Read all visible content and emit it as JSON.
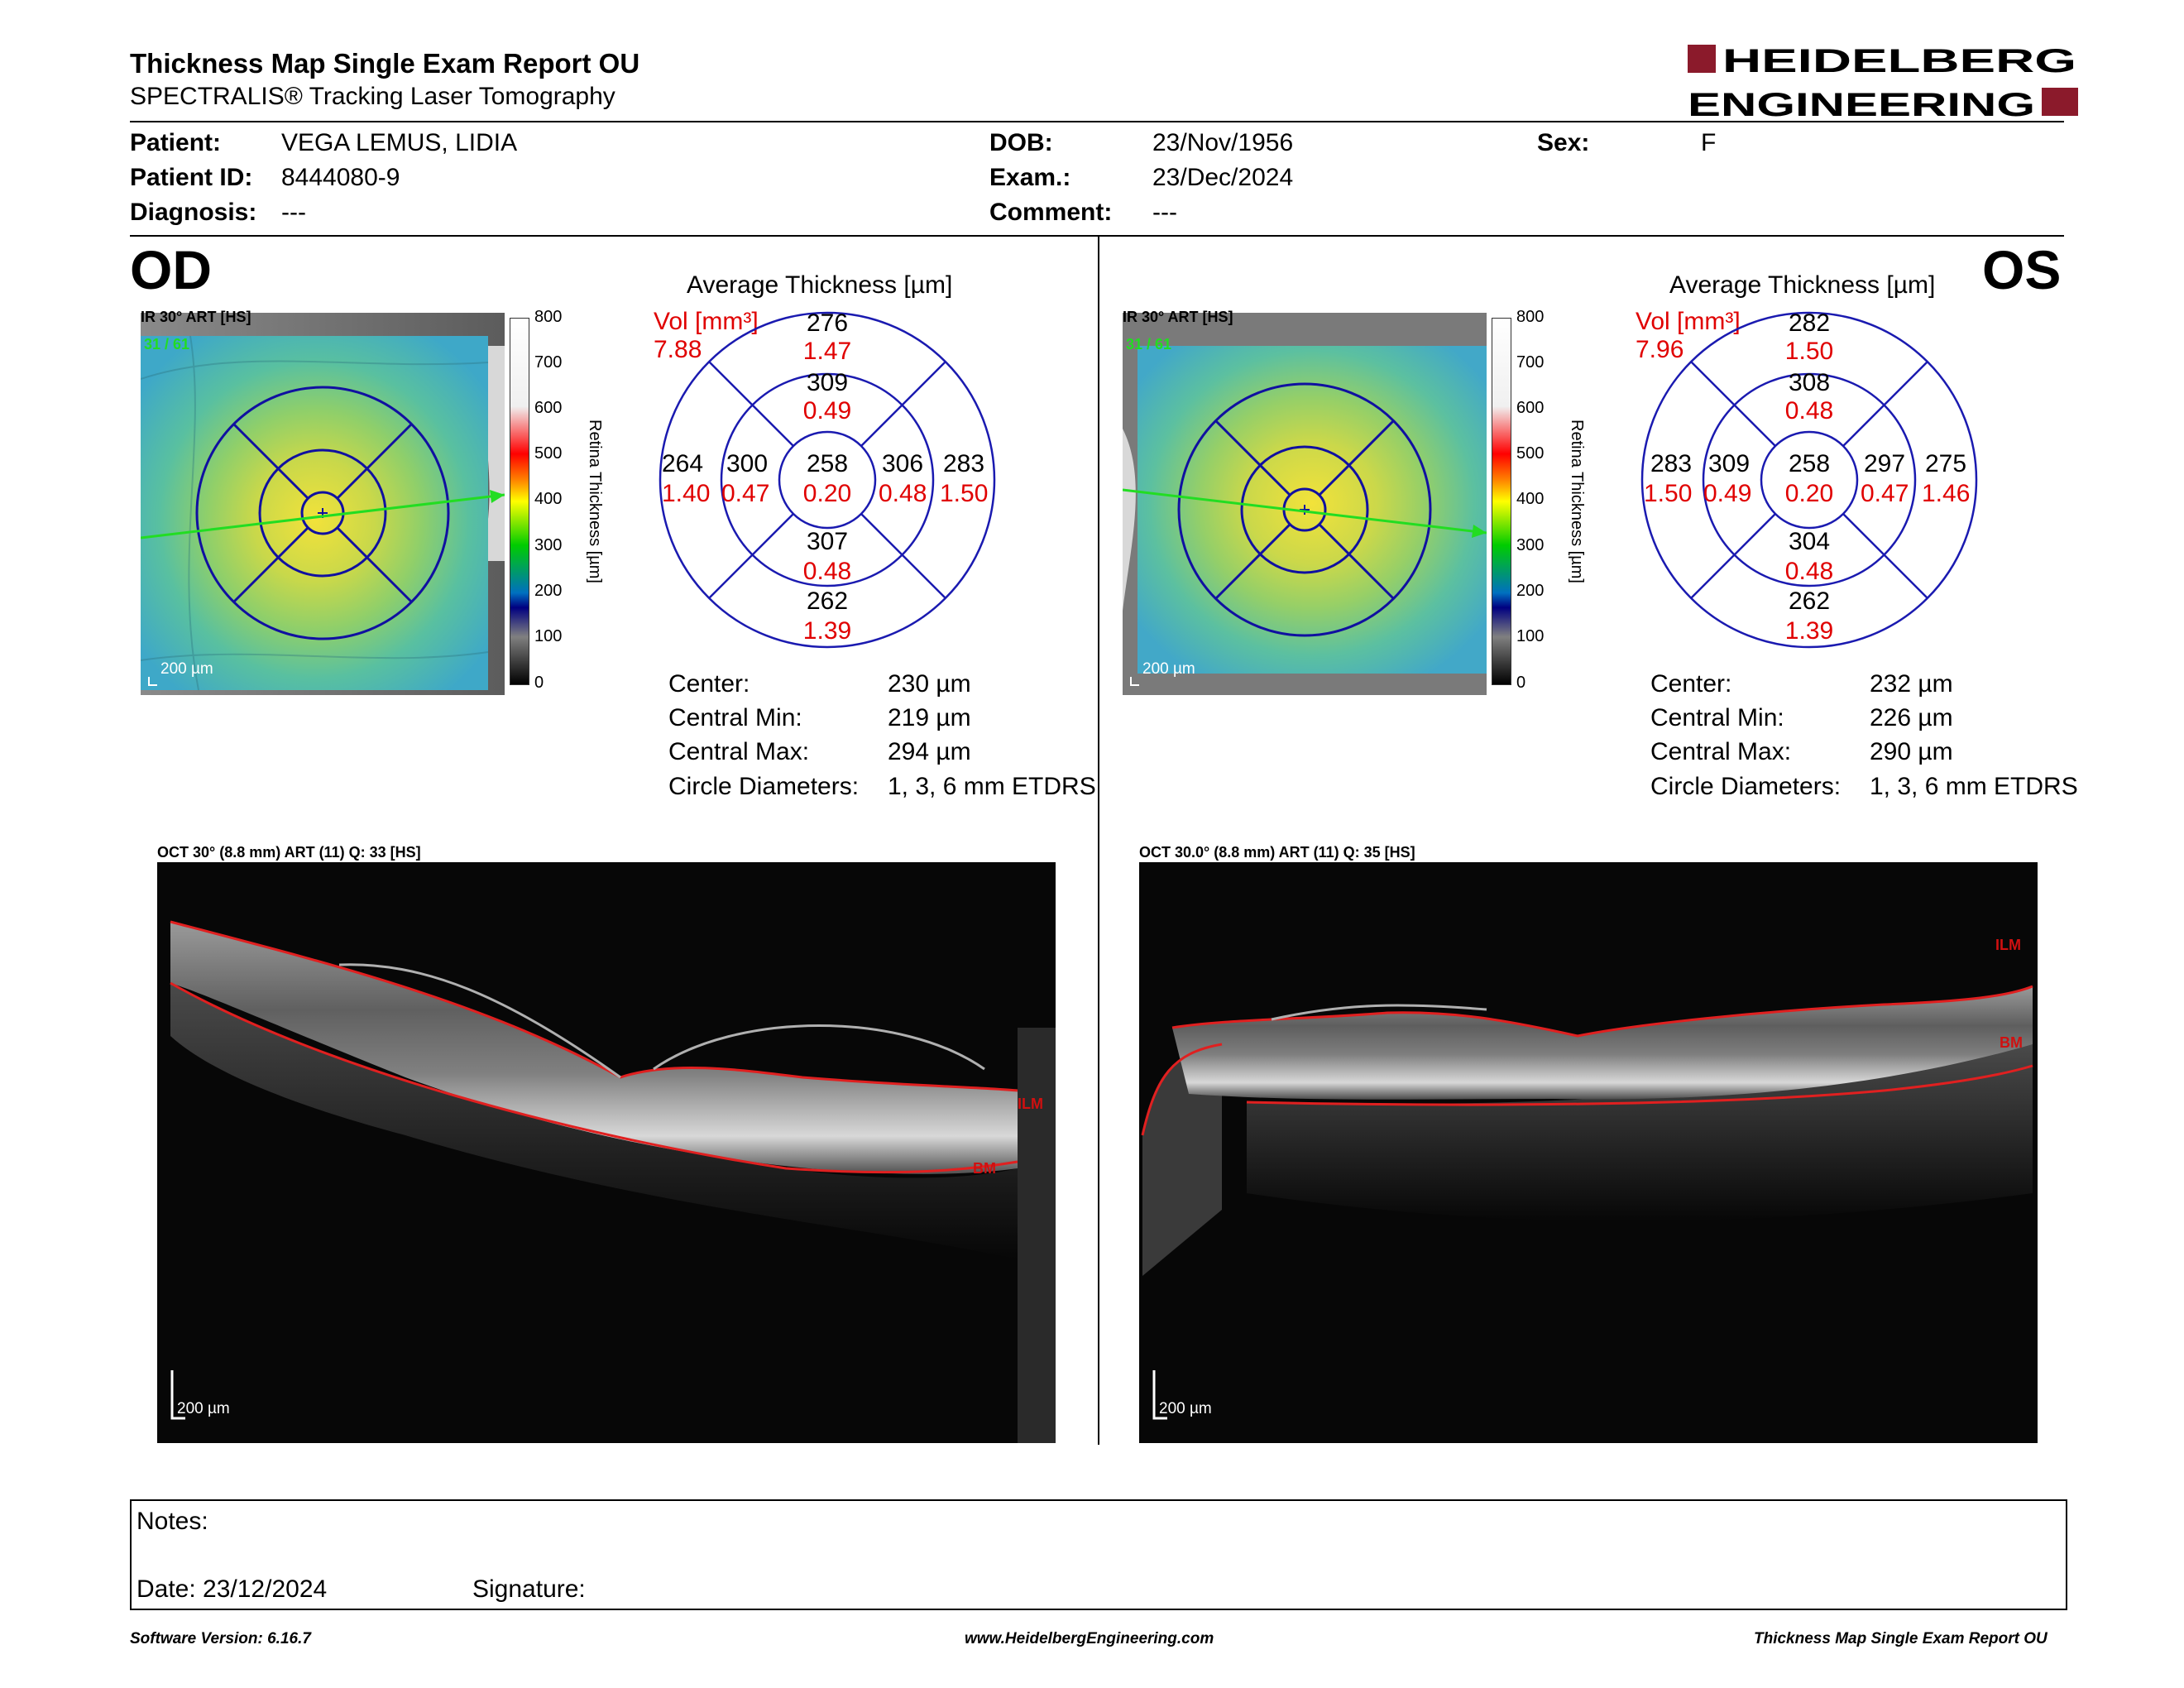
{
  "header": {
    "title": "Thickness Map Single Exam Report OU",
    "subtitle": "SPECTRALIS® Tracking Laser Tomography",
    "logo_line1": "HEIDELBERG",
    "logo_line2": "ENGINEERING"
  },
  "patient": {
    "patient_label": "Patient:",
    "patient_value": "VEGA LEMUS, LIDIA",
    "id_label": "Patient ID:",
    "id_value": "8444080-9",
    "diagnosis_label": "Diagnosis:",
    "diagnosis_value": "---",
    "dob_label": "DOB:",
    "dob_value": "23/Nov/1956",
    "exam_label": "Exam.:",
    "exam_value": "23/Dec/2024",
    "comment_label": "Comment:",
    "comment_value": "---",
    "sex_label": "Sex:",
    "sex_value": "F"
  },
  "scale": {
    "ticks": [
      "800",
      "700",
      "600",
      "500",
      "400",
      "300",
      "200",
      "100",
      "0"
    ],
    "label": "Retina Thickness [µm]"
  },
  "od": {
    "eye_label": "OD",
    "ir_label": "IR 30° ART [HS]",
    "ir_count": "31 / 61",
    "ir_scalebar": "200 µm",
    "avg_title": "Average Thickness [µm]",
    "vol_label": "Vol [mm³]",
    "vol_value": "7.88",
    "grid": {
      "outer_sup_t": "276",
      "outer_sup_v": "1.47",
      "inner_sup_t": "309",
      "inner_sup_v": "0.49",
      "outer_left_t": "264",
      "outer_left_v": "1.40",
      "inner_left_t": "300",
      "inner_left_v": "0.47",
      "center_t": "258",
      "center_v": "0.20",
      "inner_right_t": "306",
      "inner_right_v": "0.48",
      "outer_right_t": "283",
      "outer_right_v": "1.50",
      "inner_inf_t": "307",
      "inner_inf_v": "0.48",
      "outer_inf_t": "262",
      "outer_inf_v": "1.39"
    },
    "stats": {
      "center_label": "Center:",
      "center_value": "230 µm",
      "min_label": "Central Min:",
      "min_value": "219 µm",
      "max_label": "Central Max:",
      "max_value": "294 µm",
      "diam_label": "Circle Diameters:",
      "diam_value": "1, 3, 6 mm ETDRS"
    },
    "oct_label": "OCT 30° (8.8 mm) ART (11) Q: 33 [HS]",
    "oct_ilm": "ILM",
    "oct_bm": "BM",
    "oct_scalebar": "200 µm"
  },
  "os": {
    "eye_label": "OS",
    "ir_label": "IR 30° ART [HS]",
    "ir_count": "31 / 61",
    "ir_scalebar": "200 µm",
    "avg_title": "Average Thickness [µm]",
    "vol_label": "Vol [mm³]",
    "vol_value": "7.96",
    "grid": {
      "outer_sup_t": "282",
      "outer_sup_v": "1.50",
      "inner_sup_t": "308",
      "inner_sup_v": "0.48",
      "outer_left_t": "283",
      "outer_left_v": "1.50",
      "inner_left_t": "309",
      "inner_left_v": "0.49",
      "center_t": "258",
      "center_v": "0.20",
      "inner_right_t": "297",
      "inner_right_v": "0.47",
      "outer_right_t": "275",
      "outer_right_v": "1.46",
      "inner_inf_t": "304",
      "inner_inf_v": "0.48",
      "outer_inf_t": "262",
      "outer_inf_v": "1.39"
    },
    "stats": {
      "center_label": "Center:",
      "center_value": "232 µm",
      "min_label": "Central Min:",
      "min_value": "226 µm",
      "max_label": "Central Max:",
      "max_value": "290 µm",
      "diam_label": "Circle Diameters:",
      "diam_value": "1, 3, 6 mm ETDRS"
    },
    "oct_label": "OCT 30.0° (8.8 mm) ART (11) Q: 35 [HS]",
    "oct_ilm": "ILM",
    "oct_bm": "BM",
    "oct_scalebar": "200 µm"
  },
  "notes": {
    "notes_label": "Notes:",
    "date_label": "Date: 23/12/2024",
    "signature_label": "Signature:"
  },
  "footer": {
    "version": "Software Version: 6.16.7",
    "website": "www.HeidelbergEngineering.com",
    "report_name": "Thickness Map Single Exam Report OU"
  },
  "colors": {
    "red_value": "#e00000",
    "grid_blue": "#1a1ab0",
    "logo_red": "#8b1a2b"
  }
}
